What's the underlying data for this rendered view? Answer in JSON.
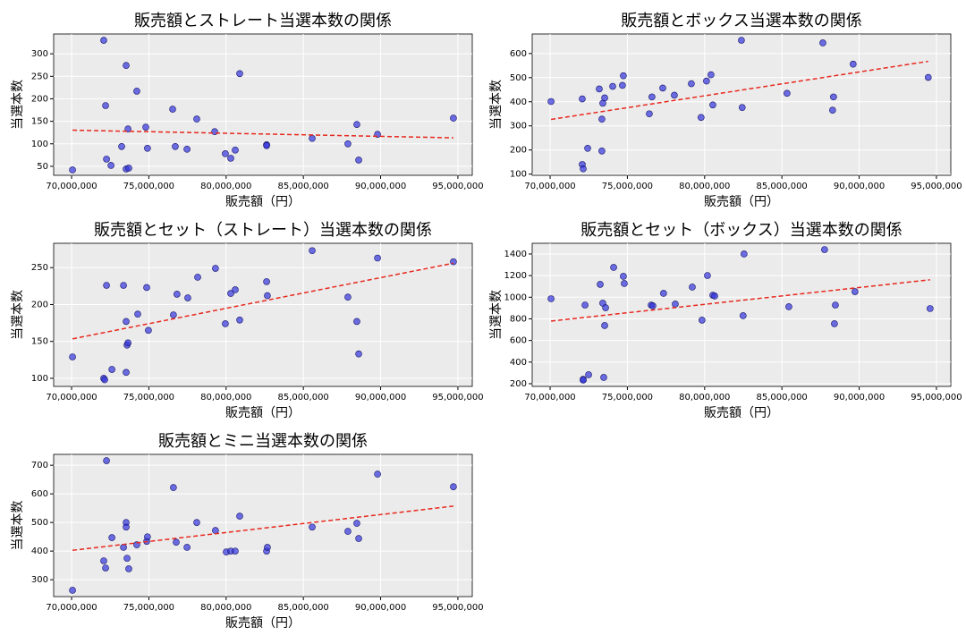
{
  "chart_data": [
    {
      "type": "scatter",
      "title": "販売額とストレート当選本数の関係",
      "xlabel": "販売額（円）",
      "ylabel": "当選本数",
      "x": [
        70060000,
        72080000,
        72200000,
        72260000,
        72550000,
        73240000,
        73530000,
        73530000,
        73650000,
        73700000,
        74220000,
        74800000,
        74910000,
        76540000,
        76710000,
        77470000,
        78100000,
        79260000,
        79950000,
        80300000,
        80590000,
        80880000,
        82620000,
        82620000,
        85570000,
        87880000,
        88460000,
        88580000,
        89800000,
        94710000
      ],
      "y": [
        42,
        330,
        185,
        66,
        52,
        94,
        274,
        44,
        133,
        46,
        217,
        137,
        90,
        177,
        94,
        88,
        155,
        127,
        78,
        68,
        86,
        256,
        98,
        96,
        112,
        100,
        143,
        64,
        121,
        157
      ],
      "xlim": [
        68840000,
        95930000
      ],
      "ylim": [
        30,
        344
      ],
      "xticks": [
        {
          "value": 70000000,
          "label": "70,000,000"
        },
        {
          "value": 75000000,
          "label": "75,000,000"
        },
        {
          "value": 80000000,
          "label": "80,000,000"
        },
        {
          "value": 85000000,
          "label": "85,000,000"
        },
        {
          "value": 90000000,
          "label": "90,000,000"
        },
        {
          "value": 95000000,
          "label": "95,000,000"
        }
      ],
      "yticks": [
        50,
        100,
        150,
        200,
        250,
        300
      ],
      "grid": true,
      "color": "#3333dd",
      "trendline": true,
      "trend_color": "#e8281e"
    },
    {
      "type": "scatter",
      "title": "販売額とボックス当選本数の関係",
      "xlabel": "販売額（円）",
      "ylabel": "当選本数",
      "x": [
        70060000,
        72080000,
        72080000,
        72140000,
        72430000,
        73180000,
        73350000,
        73350000,
        73410000,
        73530000,
        74050000,
        74680000,
        74740000,
        76420000,
        76590000,
        77290000,
        78040000,
        79140000,
        79770000,
        80120000,
        80410000,
        80530000,
        82380000,
        82430000,
        85330000,
        87650000,
        88280000,
        88340000,
        89610000,
        94470000
      ],
      "y": [
        401,
        412,
        140,
        122,
        207,
        453,
        328,
        196,
        394,
        416,
        464,
        468,
        508,
        350,
        420,
        457,
        427,
        475,
        335,
        486,
        512,
        387,
        655,
        376,
        435,
        644,
        365,
        420,
        556,
        501
      ],
      "xlim": [
        68840000,
        95930000
      ],
      "ylim": [
        95,
        681
      ],
      "xticks": [
        {
          "value": 70000000,
          "label": "70,000,000"
        },
        {
          "value": 75000000,
          "label": "75,000,000"
        },
        {
          "value": 80000000,
          "label": "80,000,000"
        },
        {
          "value": 85000000,
          "label": "85,000,000"
        },
        {
          "value": 90000000,
          "label": "90,000,000"
        },
        {
          "value": 95000000,
          "label": "95,000,000"
        }
      ],
      "yticks": [
        100,
        200,
        300,
        400,
        500,
        600
      ],
      "grid": true,
      "color": "#3333dd",
      "trendline": true,
      "trend_color": "#e8281e"
    },
    {
      "type": "scatter",
      "title": "販売額とセット（ストレート）当選本数の関係",
      "xlabel": "販売額（円）",
      "ylabel": "当選本数",
      "x": [
        70060000,
        72080000,
        72140000,
        72260000,
        72610000,
        73360000,
        73530000,
        73530000,
        73590000,
        73650000,
        74280000,
        74860000,
        74970000,
        76590000,
        76820000,
        77520000,
        78160000,
        79310000,
        79950000,
        80300000,
        80590000,
        80880000,
        82620000,
        82670000,
        85570000,
        87880000,
        88460000,
        88580000,
        89800000,
        94710000
      ],
      "y": [
        129,
        100,
        98,
        226,
        112,
        226,
        177,
        108,
        145,
        148,
        187,
        223,
        165,
        186,
        214,
        209,
        237,
        249,
        174,
        215,
        220,
        179,
        231,
        212,
        273,
        210,
        177,
        133,
        263,
        258
      ],
      "xlim": [
        68840000,
        95930000
      ],
      "ylim": [
        89,
        283
      ],
      "xticks": [
        {
          "value": 70000000,
          "label": "70,000,000"
        },
        {
          "value": 75000000,
          "label": "75,000,000"
        },
        {
          "value": 80000000,
          "label": "80,000,000"
        },
        {
          "value": 85000000,
          "label": "85,000,000"
        },
        {
          "value": 90000000,
          "label": "90,000,000"
        },
        {
          "value": 95000000,
          "label": "95,000,000"
        }
      ],
      "yticks": [
        100,
        150,
        200,
        250
      ],
      "grid": true,
      "color": "#3333dd",
      "trendline": true,
      "trend_color": "#e8281e"
    },
    {
      "type": "scatter",
      "title": "販売額とセット（ボックス）当選本数の関係",
      "xlabel": "販売額（円）",
      "ylabel": "当選本数",
      "x": [
        70060000,
        72140000,
        72140000,
        72260000,
        72490000,
        73240000,
        73410000,
        73470000,
        73530000,
        73590000,
        74110000,
        74740000,
        74800000,
        76540000,
        76650000,
        77340000,
        78100000,
        79200000,
        79830000,
        80180000,
        80530000,
        80650000,
        82550000,
        82490000,
        85450000,
        87760000,
        88400000,
        88460000,
        89730000,
        94590000
      ],
      "y": [
        986,
        241,
        233,
        928,
        283,
        1119,
        945,
        258,
        738,
        903,
        1276,
        1193,
        1127,
        928,
        920,
        1036,
        937,
        1094,
        788,
        1201,
        1019,
        1011,
        1400,
        829,
        912,
        1441,
        755,
        928,
        1052,
        895
      ],
      "xlim": [
        68840000,
        95930000
      ],
      "ylim": [
        175,
        1499
      ],
      "xticks": [
        {
          "value": 70000000,
          "label": "70,000,000"
        },
        {
          "value": 75000000,
          "label": "75,000,000"
        },
        {
          "value": 80000000,
          "label": "80,000,000"
        },
        {
          "value": 85000000,
          "label": "85,000,000"
        },
        {
          "value": 90000000,
          "label": "90,000,000"
        },
        {
          "value": 95000000,
          "label": "95,000,000"
        }
      ],
      "yticks": [
        200,
        400,
        600,
        800,
        1000,
        1200,
        1400
      ],
      "grid": true,
      "color": "#3333dd",
      "trendline": true,
      "trend_color": "#e8281e"
    },
    {
      "type": "scatter",
      "title": "販売額とミニ当選本数の関係",
      "xlabel": "販売額（円）",
      "ylabel": "当選本数",
      "x": [
        70060000,
        72080000,
        72200000,
        72260000,
        72610000,
        73360000,
        73530000,
        73530000,
        73590000,
        73700000,
        74220000,
        74860000,
        74910000,
        76590000,
        76770000,
        77470000,
        78100000,
        79310000,
        80010000,
        80300000,
        80590000,
        80880000,
        82620000,
        82670000,
        85570000,
        87880000,
        88460000,
        88580000,
        89800000,
        94710000
      ],
      "y": [
        263,
        366,
        341,
        716,
        447,
        413,
        500,
        484,
        375,
        338,
        422,
        434,
        450,
        622,
        431,
        413,
        500,
        472,
        397,
        400,
        400,
        522,
        400,
        413,
        484,
        469,
        497,
        444,
        669,
        625
      ],
      "xlim": [
        68840000,
        95930000
      ],
      "ylim": [
        241,
        738
      ],
      "xticks": [
        {
          "value": 70000000,
          "label": "70,000,000"
        },
        {
          "value": 75000000,
          "label": "75,000,000"
        },
        {
          "value": 80000000,
          "label": "80,000,000"
        },
        {
          "value": 85000000,
          "label": "85,000,000"
        },
        {
          "value": 90000000,
          "label": "90,000,000"
        },
        {
          "value": 95000000,
          "label": "95,000,000"
        }
      ],
      "yticks": [
        300,
        400,
        500,
        600,
        700
      ],
      "grid": true,
      "color": "#3333dd",
      "trendline": true,
      "trend_color": "#e8281e"
    }
  ]
}
